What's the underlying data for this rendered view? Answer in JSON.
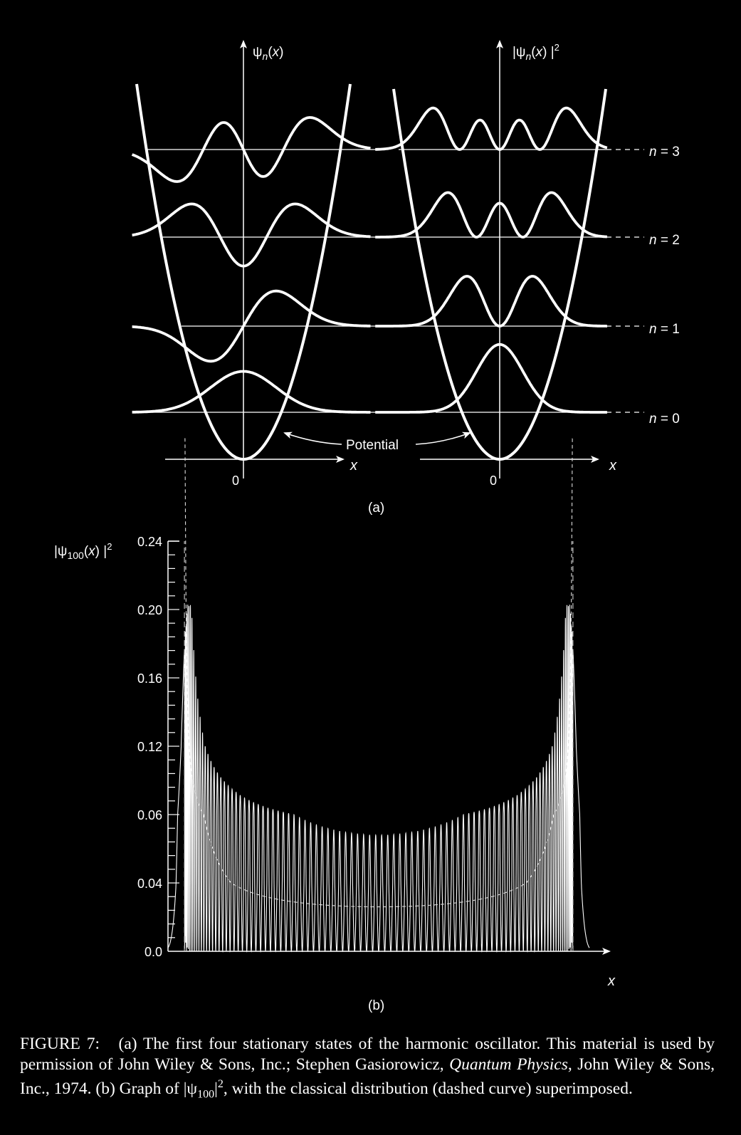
{
  "figure_a": {
    "psi_label": "ψn(x)",
    "psi_sq_label": "|ψn(x)|2",
    "potential_label": "Potential",
    "x_label": "x",
    "zero_label": "0",
    "sub_label": "(a)",
    "levels": [
      "n = 3",
      "n = 2",
      "n = 1",
      "n = 0"
    ]
  },
  "chart_data": {
    "type": "line",
    "title": "",
    "ylabel": "|ψ100(x)|2",
    "xlabel": "x",
    "sub_label": "(b)",
    "y_ticks": [
      "0.24",
      "0.20",
      "0.16",
      "0.12",
      "0.06",
      "0.04",
      "0.0"
    ],
    "series": [
      {
        "name": "|ψ100|²",
        "style": "solid",
        "n": 100,
        "outer_peak": 0.203,
        "center_peak": 0.054
      },
      {
        "name": "classical distribution",
        "style": "dashed",
        "center_value": 0.026
      }
    ],
    "grid": false
  },
  "caption": {
    "fig_label": "FIGURE 7:",
    "part_a": "(a) The first four stationary states of the harmonic oscillator. This material is used by permission of John Wiley & Sons, Inc.; Stephen Gasiorowicz, ",
    "book1": "Quantum Physics",
    "part_b": ", John Wiley & Sons, Inc., 1974. (b) Graph of |ψ",
    "sub": "100",
    "sup_text": "|",
    "exp": "2",
    "part_c": ", with the classical distribution (dashed curve) superimposed."
  }
}
